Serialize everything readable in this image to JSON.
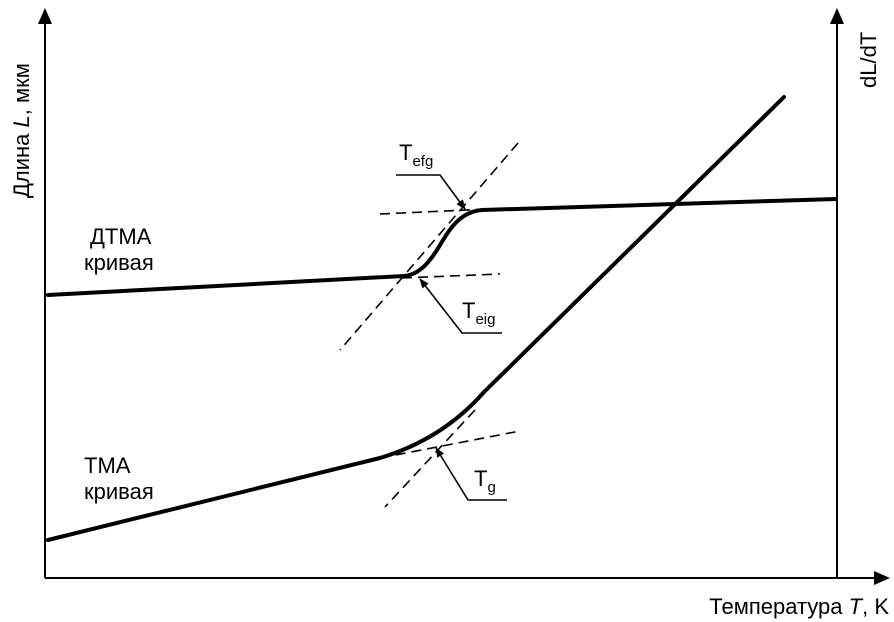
{
  "axes": {
    "y_left_label": "Длина",
    "y_left_var": "L",
    "y_left_unit": ", мкм",
    "y_right_label": "dL/dT",
    "x_label": "Температура",
    "x_var": "T",
    "x_unit": ", K"
  },
  "curves": {
    "dtma_line1": "ДТМА",
    "dtma_line2": "кривая",
    "tma_line1": "ТМА",
    "tma_line2": "кривая"
  },
  "points": {
    "tefg": {
      "main": "T",
      "sub": "efg"
    },
    "teig": {
      "main": "T",
      "sub": "eig"
    },
    "tg": {
      "main": "T",
      "sub": "g"
    }
  },
  "colors": {
    "ink": "#000000",
    "background": "#ffffff"
  }
}
